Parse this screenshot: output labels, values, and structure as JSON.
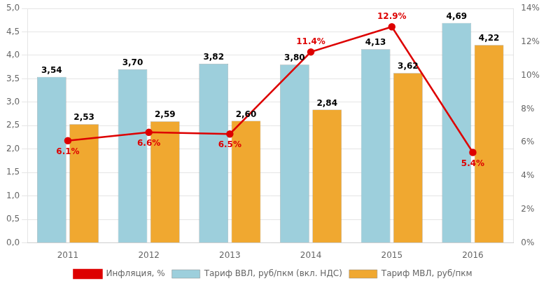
{
  "chart_data": {
    "type": "bar",
    "categories": [
      "2011",
      "2012",
      "2013",
      "2014",
      "2015",
      "2016"
    ],
    "series": [
      {
        "name": "Тариф ВВЛ, руб/пкм (вкл. НДС)",
        "type": "bar",
        "color": "#9DCFDC",
        "values": [
          3.54,
          3.7,
          3.82,
          3.8,
          4.13,
          4.69
        ],
        "value_labels": [
          "3,54",
          "3,70",
          "3,82",
          "3,80",
          "4,13",
          "4,69"
        ]
      },
      {
        "name": "Тариф МВЛ, руб/пкм",
        "type": "bar",
        "color": "#F0A830",
        "values": [
          2.53,
          2.59,
          2.6,
          2.84,
          3.62,
          4.22
        ],
        "value_labels": [
          "2,53",
          "2,59",
          "2,60",
          "2,84",
          "3,62",
          "4,22"
        ]
      },
      {
        "name": "Инфляция, %",
        "type": "line",
        "color": "#DD0000",
        "axis": "y2",
        "marker": "circle",
        "values": [
          6.1,
          6.6,
          6.5,
          11.4,
          12.9,
          5.4
        ],
        "value_labels": [
          "6.1%",
          "6.6%",
          "6.5%",
          "11.4%",
          "12.9%",
          "5.4%"
        ]
      }
    ],
    "ylim": [
      0.0,
      5.0
    ],
    "yticks": [
      {
        "value": 0.0,
        "label": "0,0"
      },
      {
        "value": 0.5,
        "label": "0,5"
      },
      {
        "value": 1.0,
        "label": "1,0"
      },
      {
        "value": 1.5,
        "label": "1,5"
      },
      {
        "value": 2.0,
        "label": "2,0"
      },
      {
        "value": 2.5,
        "label": "2,5"
      },
      {
        "value": 3.0,
        "label": "3,0"
      },
      {
        "value": 3.5,
        "label": "3,5"
      },
      {
        "value": 4.0,
        "label": "4,0"
      },
      {
        "value": 4.5,
        "label": "4,5"
      },
      {
        "value": 5.0,
        "label": "5,0"
      }
    ],
    "y2lim": [
      0,
      14
    ],
    "y2ticks": [
      {
        "value": 0,
        "label": "0%"
      },
      {
        "value": 2,
        "label": "2%"
      },
      {
        "value": 4,
        "label": "4%"
      },
      {
        "value": 6,
        "label": "6%"
      },
      {
        "value": 8,
        "label": "8%"
      },
      {
        "value": 10,
        "label": "10%"
      },
      {
        "value": 12,
        "label": "12%"
      },
      {
        "value": 14,
        "label": "14%"
      }
    ],
    "grid": true,
    "legend": "bottom",
    "data_labels": true
  }
}
